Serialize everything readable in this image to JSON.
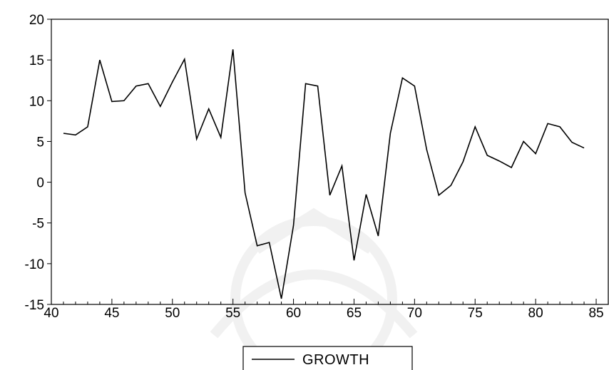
{
  "chart_data": {
    "type": "line",
    "title": "",
    "xlabel": "",
    "ylabel": "",
    "xlim": [
      40,
      86
    ],
    "ylim": [
      -15,
      20
    ],
    "x_ticks": [
      "40",
      "45",
      "50",
      "55",
      "60",
      "65",
      "70",
      "75",
      "80",
      "85"
    ],
    "y_ticks": [
      "20",
      "15",
      "10",
      "5",
      "0",
      "-5",
      "-10",
      "-15"
    ],
    "grid": false,
    "legend_position": "bottom-center",
    "series": [
      {
        "name": "GROWTH",
        "color": "#000000",
        "x": [
          41,
          42,
          43,
          44,
          45,
          46,
          47,
          48,
          49,
          50,
          51,
          52,
          53,
          54,
          55,
          56,
          57,
          58,
          59,
          60,
          61,
          62,
          63,
          64,
          65,
          66,
          67,
          68,
          69,
          70,
          71,
          72,
          73,
          74,
          75,
          76,
          77,
          78,
          79,
          80,
          81,
          82,
          83,
          84
        ],
        "y": [
          6.0,
          5.8,
          6.8,
          15.0,
          9.9,
          10.0,
          11.8,
          12.1,
          9.3,
          12.3,
          15.1,
          5.3,
          9.0,
          5.5,
          16.3,
          -1.3,
          -7.8,
          -7.4,
          -14.3,
          -5.3,
          12.1,
          11.8,
          -1.6,
          2.0,
          -9.6,
          -1.5,
          -6.6,
          6.0,
          12.8,
          11.8,
          4.0,
          -1.6,
          -0.4,
          2.5,
          6.8,
          3.3,
          2.6,
          1.8,
          5.0,
          3.5,
          7.2,
          6.8,
          4.9,
          4.2
        ]
      }
    ]
  }
}
